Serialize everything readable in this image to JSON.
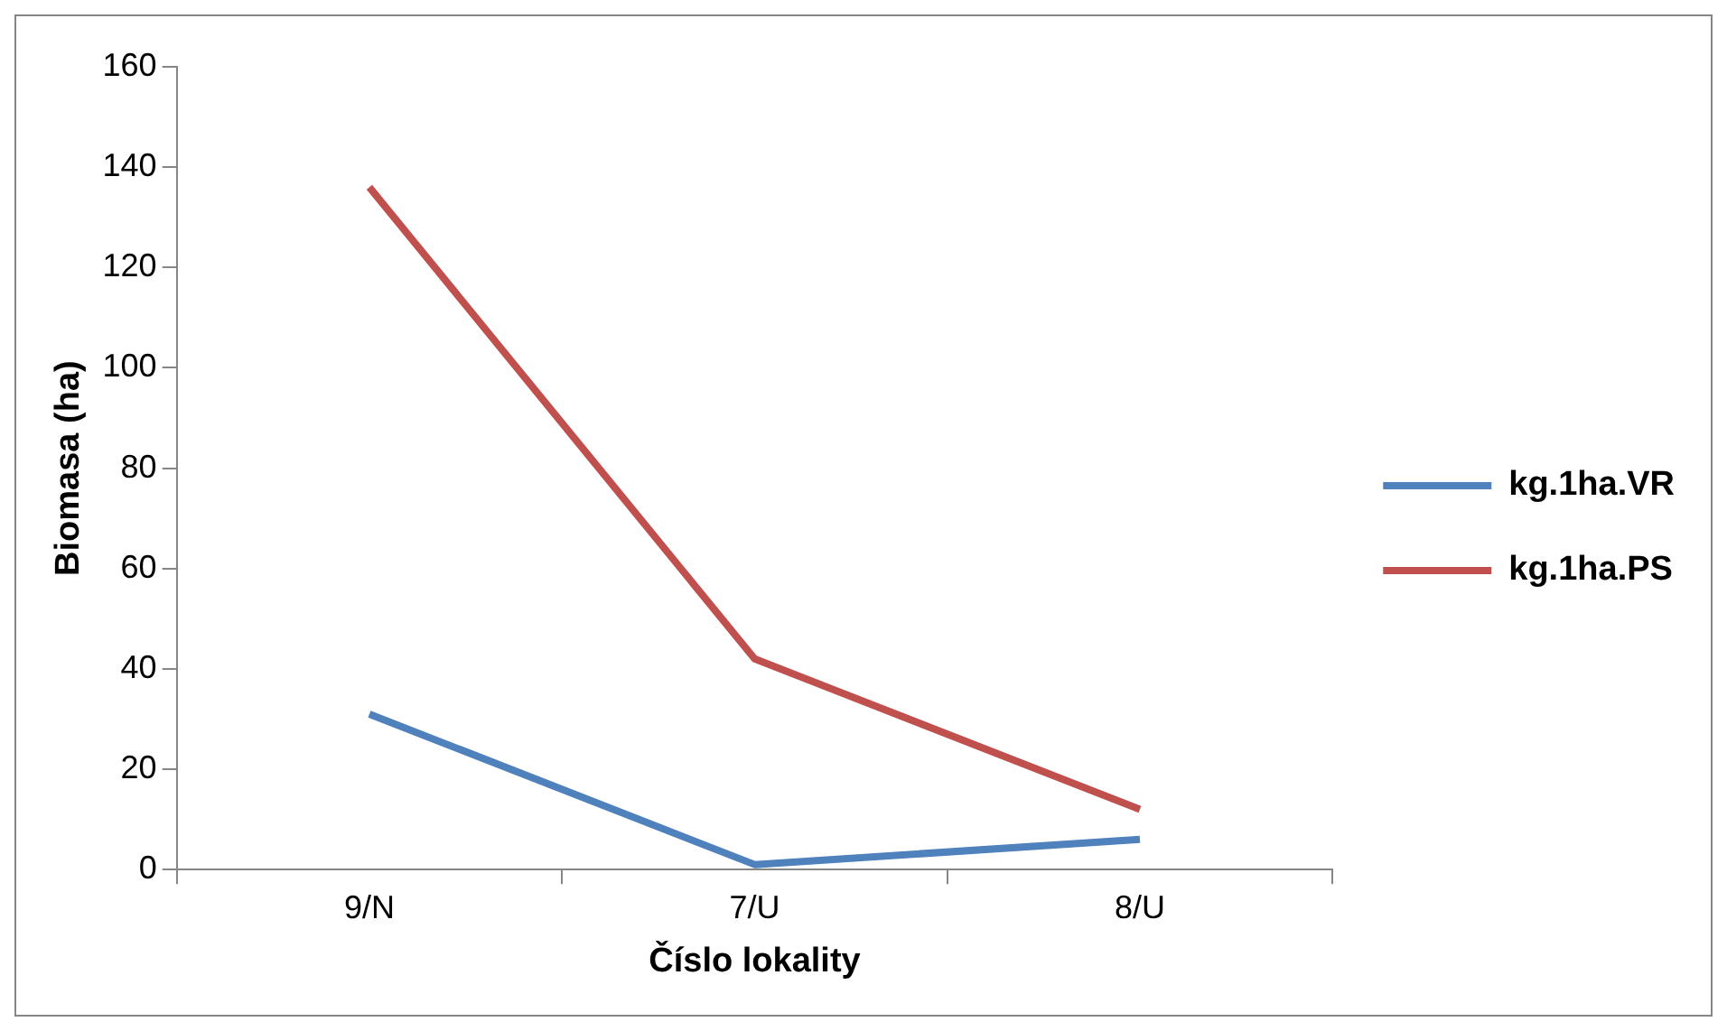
{
  "chart_data": {
    "type": "line",
    "xlabel": "Číslo lokality",
    "ylabel": "Biomasa (ha)",
    "categories": [
      "9/N",
      "7/U",
      "8/U"
    ],
    "series": [
      {
        "name": "kg.1ha.VR",
        "color": "#4f81bd",
        "values": [
          31,
          1,
          6
        ]
      },
      {
        "name": "kg.1ha.PS",
        "color": "#c0504d",
        "values": [
          136,
          42,
          12
        ]
      }
    ],
    "ylim": [
      0,
      160
    ],
    "yticks": [
      0,
      20,
      40,
      60,
      80,
      100,
      120,
      140,
      160
    ],
    "grid": false,
    "legend": "right",
    "marker": "none",
    "line_style": "solid"
  }
}
